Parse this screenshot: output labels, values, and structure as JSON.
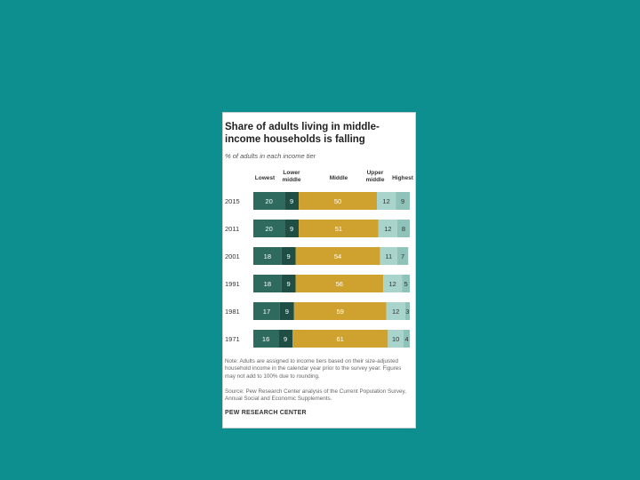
{
  "chart_data": {
    "type": "bar",
    "stacked": true,
    "orientation": "horizontal",
    "title": "Share of adults living in middle-income households is falling",
    "subtitle": "% of adults in each income tier",
    "categories": [
      "2015",
      "2011",
      "2001",
      "1991",
      "1981",
      "1971"
    ],
    "series": [
      {
        "name": "Lowest",
        "values": [
          20,
          20,
          18,
          18,
          17,
          16
        ]
      },
      {
        "name": "Lower middle",
        "values": [
          9,
          9,
          9,
          9,
          9,
          9
        ]
      },
      {
        "name": "Middle",
        "values": [
          50,
          51,
          54,
          56,
          59,
          61
        ]
      },
      {
        "name": "Upper middle",
        "values": [
          12,
          12,
          11,
          12,
          12,
          10
        ]
      },
      {
        "name": "Highest",
        "values": [
          9,
          8,
          7,
          5,
          3,
          4
        ]
      }
    ],
    "colors": [
      "#2e6b5e",
      "#1f4e45",
      "#cfa12f",
      "#a9d4cc",
      "#8fc2b8"
    ],
    "label_colors": [
      "#ffffff",
      "#ffffff",
      "#ffffff",
      "#333333",
      "#333333"
    ],
    "xlim": [
      0,
      100
    ]
  },
  "header": {
    "title": "Share of adults living in middle-income households is falling",
    "subtitle": "% of adults in each income tier",
    "col_lowest": "Lowest",
    "col_lower_middle": "Lower middle",
    "col_middle": "Middle",
    "col_upper_middle": "Upper middle",
    "col_highest": "Highest"
  },
  "footer": {
    "note": "Note: Adults are assigned to income tiers based on their size-adjusted household income in the calendar year prior to the survey year. Figures may not add to 100% due to rounding.",
    "source": "Source: Pew Research Center analysis of the Current Population Survey, Annual Social and Economic Supplements.",
    "brand": "PEW RESEARCH CENTER"
  },
  "colors": {
    "background": "#0e8f8f",
    "card": "#ffffff"
  }
}
